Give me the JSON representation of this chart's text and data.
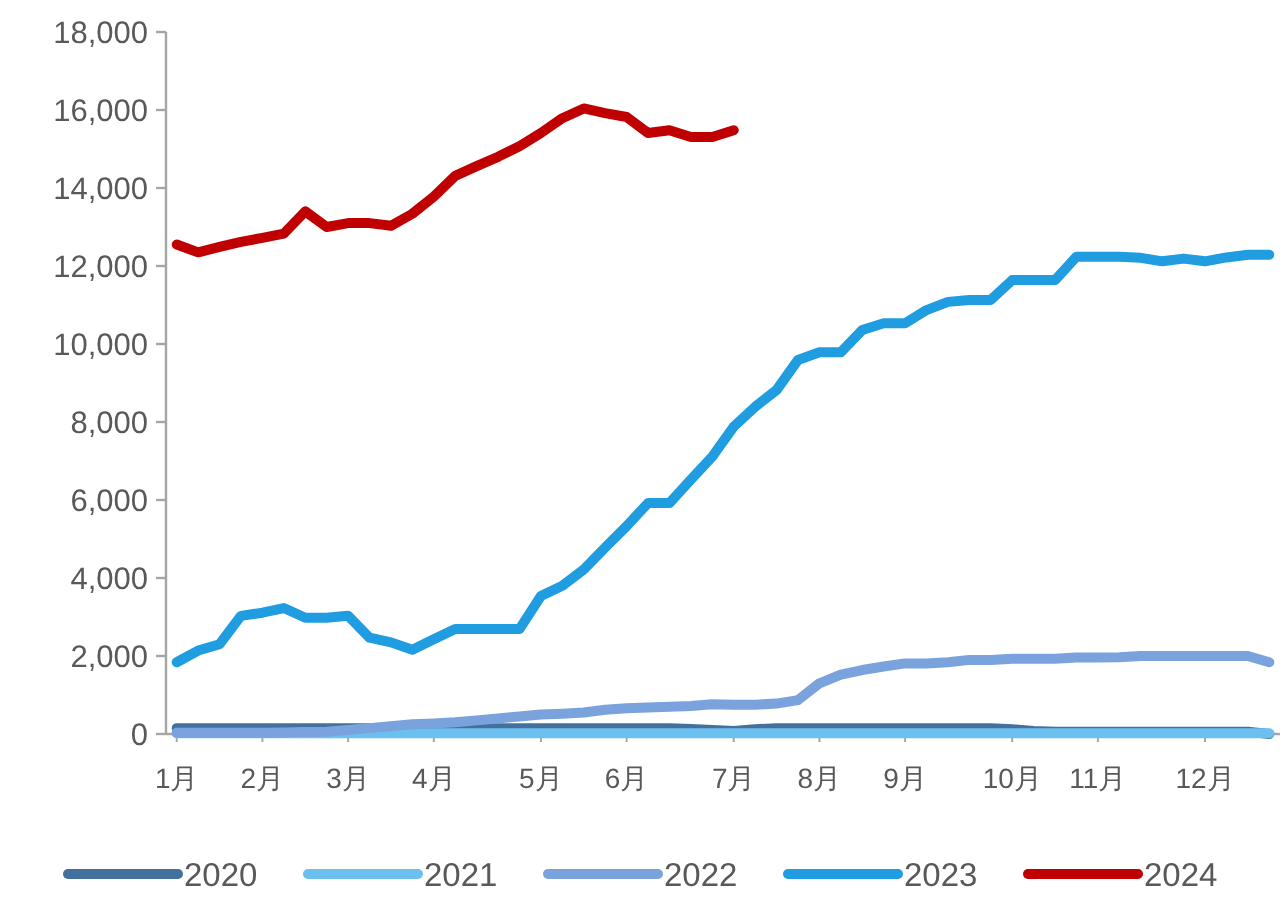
{
  "chart_data": {
    "type": "line",
    "categories": [
      "1月",
      null,
      null,
      null,
      "2月",
      null,
      null,
      null,
      "3月",
      null,
      null,
      null,
      "4月",
      null,
      null,
      null,
      null,
      "5月",
      null,
      null,
      null,
      "6月",
      null,
      null,
      null,
      null,
      "7月",
      null,
      null,
      null,
      "8月",
      null,
      null,
      null,
      "9月",
      null,
      null,
      null,
      null,
      "10月",
      null,
      null,
      null,
      "11月",
      null,
      null,
      null,
      null,
      "12月",
      null,
      null,
      null
    ],
    "ylim": [
      0,
      18000
    ],
    "yticks": [
      0,
      {
        "value": 2000,
        "label": "2,000"
      },
      {
        "value": 4000,
        "label": "4,000"
      },
      {
        "value": 6000,
        "label": "6,000"
      },
      {
        "value": 8000,
        "label": "8,000"
      },
      {
        "value": 10000,
        "label": "10,000"
      },
      {
        "value": 12000,
        "label": "12,000"
      },
      {
        "value": 14000,
        "label": "14,000"
      },
      {
        "value": 16000,
        "label": "16,000"
      },
      {
        "value": 18000,
        "label": "18,000"
      }
    ],
    "grid": false,
    "legend": "bottom",
    "marker": "none",
    "line_style": "solid",
    "series": [
      {
        "name": "2020",
        "color": "#44709d",
        "values": [
          150,
          150,
          150,
          150,
          150,
          150,
          150,
          150,
          150,
          150,
          150,
          150,
          150,
          150,
          150,
          150,
          150,
          150,
          150,
          150,
          150,
          150,
          150,
          150,
          130,
          100,
          80,
          120,
          150,
          150,
          150,
          150,
          150,
          150,
          150,
          150,
          150,
          150,
          150,
          120,
          80,
          60,
          60,
          60,
          60,
          60,
          60,
          60,
          60,
          60,
          60,
          0
        ]
      },
      {
        "name": "2021",
        "color": "#6cc0f0",
        "values": [
          20,
          20,
          20,
          20,
          20,
          20,
          20,
          20,
          20,
          20,
          20,
          20,
          20,
          20,
          20,
          20,
          20,
          20,
          20,
          20,
          20,
          20,
          20,
          20,
          20,
          20,
          20,
          20,
          20,
          20,
          20,
          20,
          20,
          20,
          20,
          20,
          20,
          20,
          20,
          20,
          20,
          20,
          20,
          20,
          20,
          20,
          20,
          20,
          20,
          20,
          20,
          20
        ]
      },
      {
        "name": "2022",
        "color": "#7aa3dd",
        "values": [
          30,
          30,
          30,
          30,
          30,
          40,
          50,
          60,
          100,
          150,
          200,
          250,
          270,
          300,
          350,
          400,
          450,
          500,
          520,
          550,
          620,
          660,
          680,
          700,
          720,
          760,
          750,
          750,
          780,
          870,
          1300,
          1520,
          1640,
          1730,
          1810,
          1810,
          1840,
          1900,
          1900,
          1930,
          1930,
          1930,
          1960,
          1960,
          1970,
          2000,
          2000,
          2000,
          2000,
          2000,
          2000,
          1840
        ]
      },
      {
        "name": "2023",
        "color": "#1f9de0",
        "values": [
          1840,
          2140,
          2300,
          3030,
          3110,
          3230,
          2980,
          2980,
          3030,
          2470,
          2350,
          2160,
          2430,
          2690,
          2690,
          2690,
          2690,
          3540,
          3800,
          4220,
          4780,
          5330,
          5920,
          5920,
          6520,
          7110,
          7880,
          8390,
          8820,
          9590,
          9790,
          9790,
          10360,
          10530,
          10530,
          10870,
          11080,
          11130,
          11130,
          11640,
          11640,
          11640,
          12240,
          12240,
          12240,
          12210,
          12120,
          12190,
          12120,
          12220,
          12290,
          12290
        ]
      },
      {
        "name": "2024",
        "color": "#c00000",
        "values": [
          12550,
          12350,
          12490,
          12620,
          12720,
          12830,
          13400,
          13000,
          13100,
          13100,
          13030,
          13340,
          13780,
          14310,
          14560,
          14800,
          15070,
          15410,
          15790,
          16040,
          15920,
          15820,
          15410,
          15480,
          15310,
          15310,
          15480,
          null,
          null,
          null,
          null,
          null,
          null,
          null,
          null,
          null,
          null,
          null,
          null,
          null,
          null,
          null,
          null,
          null,
          null,
          null,
          null,
          null,
          null,
          null,
          null,
          null
        ]
      }
    ]
  }
}
